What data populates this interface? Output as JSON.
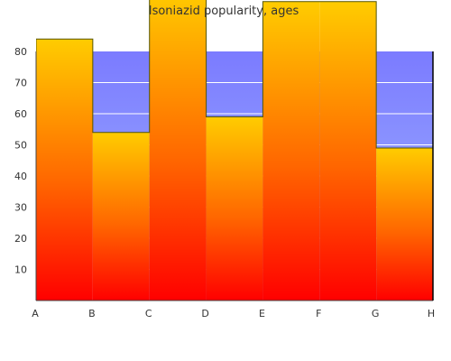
{
  "chart_data": {
    "type": "area",
    "title": "Isoniazid popularity, ages",
    "xlabel": "",
    "ylabel": "",
    "categories": [
      "A",
      "B",
      "C",
      "D",
      "E",
      "F",
      "G",
      "H"
    ],
    "ylim": [
      0,
      80
    ],
    "yticks": [
      10,
      20,
      30,
      40,
      50,
      60,
      70,
      80
    ],
    "steps": [
      {
        "from": "A",
        "to": "B",
        "value": 84
      },
      {
        "from": "B",
        "to": "C",
        "value": 54
      },
      {
        "from": "C",
        "to": "D",
        "value": 100
      },
      {
        "from": "D",
        "to": "E",
        "value": 59
      },
      {
        "from": "E",
        "to": "F",
        "value": 96
      },
      {
        "from": "F",
        "to": "G",
        "value": 96
      },
      {
        "from": "G",
        "to": "H",
        "value": 49
      }
    ],
    "background_band": {
      "from": "B",
      "to": "H",
      "value": 80
    },
    "grid": true,
    "legend": "none",
    "colors": {
      "fill_top": "#ffcc00",
      "fill_mid": "#ff6600",
      "fill_bottom": "#ff0000",
      "band_top": "#7b7bff",
      "band_bottom": "#a3b9ff",
      "outline": "#555500",
      "axis": "#444444",
      "text": "#333333"
    }
  }
}
